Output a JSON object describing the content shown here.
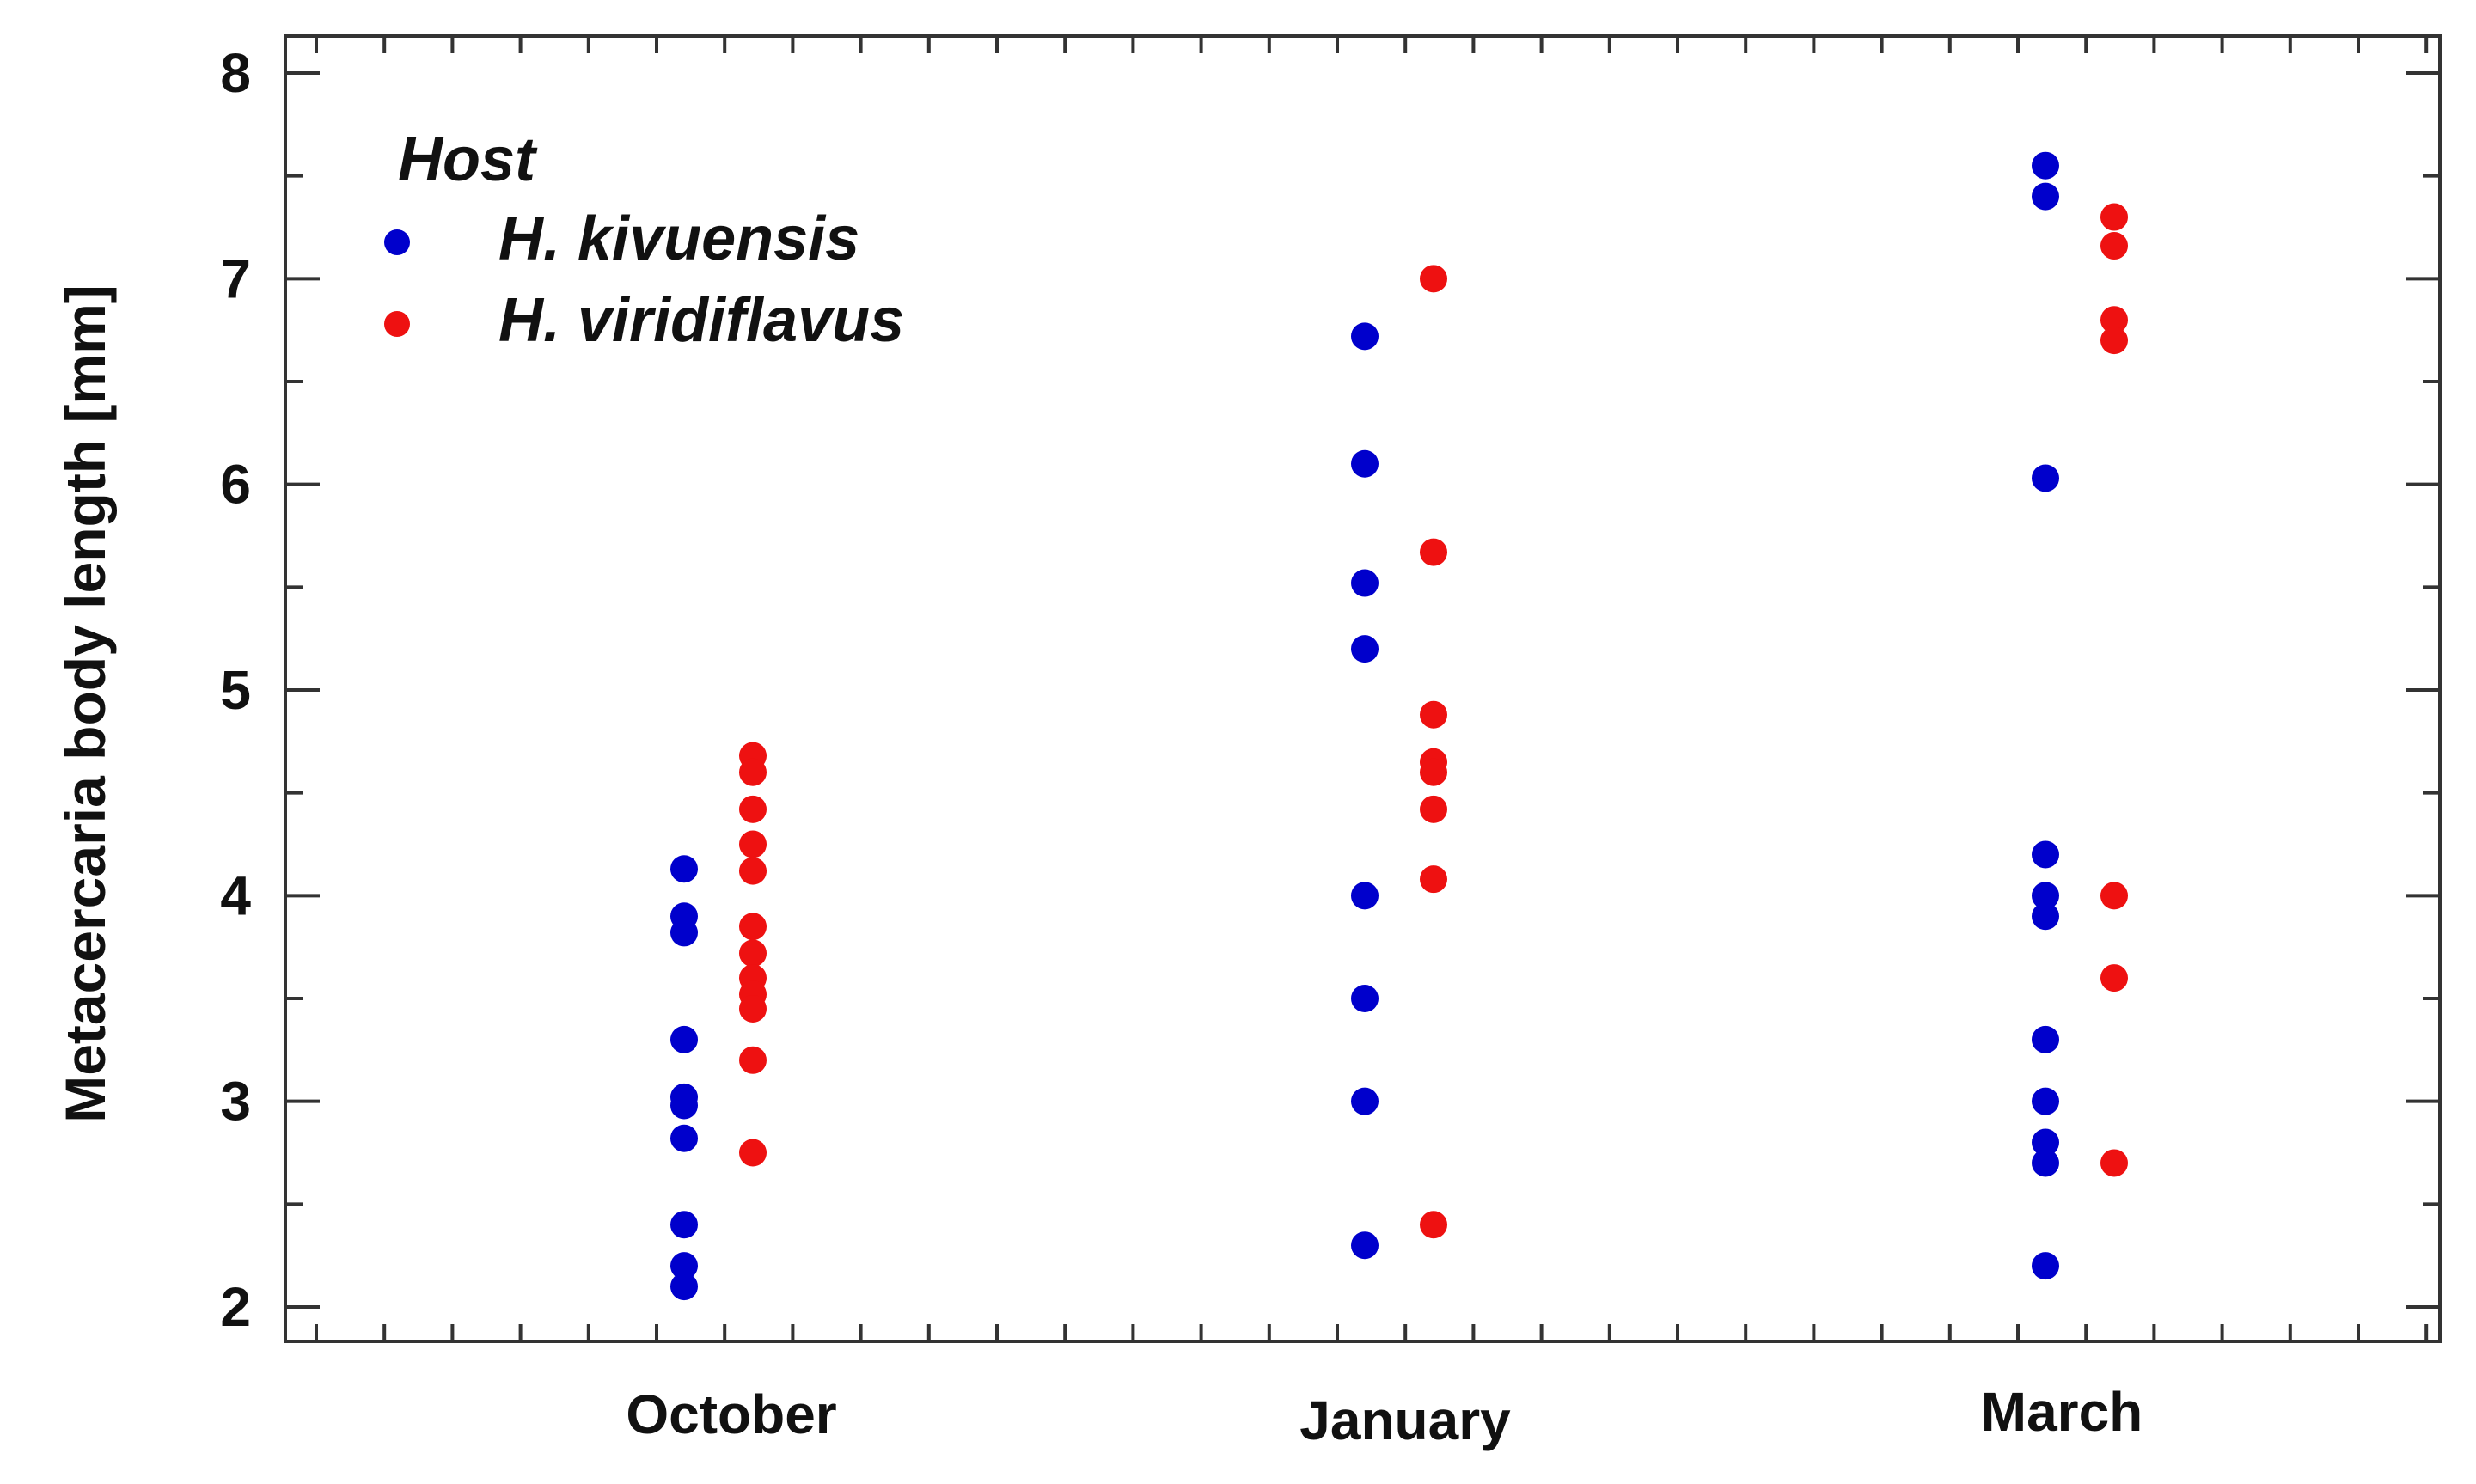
{
  "chart_data": {
    "type": "scatter",
    "title": "",
    "xlabel": "",
    "ylabel": "Metacercaria body length [mm]",
    "categories": [
      "October",
      "January",
      "March"
    ],
    "ylim": [
      2,
      8
    ],
    "y_ticks": [
      "2",
      "3",
      "4",
      "5",
      "6",
      "7",
      "8"
    ],
    "grid": false,
    "legend": {
      "title": "Host",
      "position": "top-left"
    },
    "series": [
      {
        "name": "H. kivuensis",
        "color": "#0000cc",
        "points": [
          {
            "category": "October",
            "y": 4.13
          },
          {
            "category": "October",
            "y": 3.9
          },
          {
            "category": "October",
            "y": 3.82
          },
          {
            "category": "October",
            "y": 3.3
          },
          {
            "category": "October",
            "y": 3.02
          },
          {
            "category": "October",
            "y": 2.98
          },
          {
            "category": "October",
            "y": 2.82
          },
          {
            "category": "October",
            "y": 2.4
          },
          {
            "category": "October",
            "y": 2.2
          },
          {
            "category": "October",
            "y": 2.1
          },
          {
            "category": "January",
            "y": 6.72
          },
          {
            "category": "January",
            "y": 6.1
          },
          {
            "category": "January",
            "y": 5.52
          },
          {
            "category": "January",
            "y": 5.2
          },
          {
            "category": "January",
            "y": 4.0
          },
          {
            "category": "January",
            "y": 3.5
          },
          {
            "category": "January",
            "y": 3.0
          },
          {
            "category": "January",
            "y": 2.3
          },
          {
            "category": "March",
            "y": 7.55
          },
          {
            "category": "March",
            "y": 7.4
          },
          {
            "category": "March",
            "y": 6.03
          },
          {
            "category": "March",
            "y": 4.2
          },
          {
            "category": "March",
            "y": 4.0
          },
          {
            "category": "March",
            "y": 3.9
          },
          {
            "category": "March",
            "y": 3.3
          },
          {
            "category": "March",
            "y": 3.0
          },
          {
            "category": "March",
            "y": 2.8
          },
          {
            "category": "March",
            "y": 2.7
          },
          {
            "category": "March",
            "y": 2.2
          }
        ]
      },
      {
        "name": "H. viridiflavus",
        "color": "#ee1111",
        "points": [
          {
            "category": "October",
            "y": 4.68
          },
          {
            "category": "October",
            "y": 4.6
          },
          {
            "category": "October",
            "y": 4.42
          },
          {
            "category": "October",
            "y": 4.25
          },
          {
            "category": "October",
            "y": 4.12
          },
          {
            "category": "October",
            "y": 3.85
          },
          {
            "category": "October",
            "y": 3.72
          },
          {
            "category": "October",
            "y": 3.6
          },
          {
            "category": "October",
            "y": 3.52
          },
          {
            "category": "October",
            "y": 3.45
          },
          {
            "category": "October",
            "y": 3.2
          },
          {
            "category": "October",
            "y": 2.75
          },
          {
            "category": "January",
            "y": 7.0
          },
          {
            "category": "January",
            "y": 5.67
          },
          {
            "category": "January",
            "y": 4.88
          },
          {
            "category": "January",
            "y": 4.65
          },
          {
            "category": "January",
            "y": 4.6
          },
          {
            "category": "January",
            "y": 4.42
          },
          {
            "category": "January",
            "y": 4.08
          },
          {
            "category": "January",
            "y": 2.4
          },
          {
            "category": "March",
            "y": 7.3
          },
          {
            "category": "March",
            "y": 7.16
          },
          {
            "category": "March",
            "y": 6.8
          },
          {
            "category": "March",
            "y": 6.7
          },
          {
            "category": "March",
            "y": 4.0
          },
          {
            "category": "March",
            "y": 3.6
          },
          {
            "category": "March",
            "y": 2.7
          }
        ]
      }
    ]
  }
}
